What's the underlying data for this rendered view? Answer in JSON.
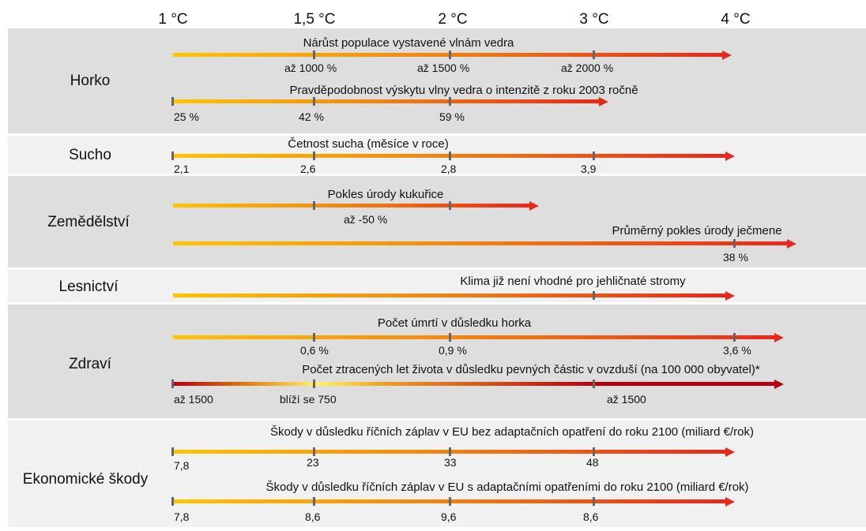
{
  "temperatures": [
    "1 °C",
    "1,5 °C",
    "2 °C",
    "3 °C",
    "4 °C"
  ],
  "categories": [
    {
      "name": "Horko",
      "indicators": [
        {
          "title": "Nárůst populace vystavené vlnám vedra",
          "values": [
            "až 1000 %",
            "až 1500 %",
            "až 2000 %"
          ]
        },
        {
          "title": "Pravděpodobnost výskytu vlny vedra o intenzitě z roku 2003 ročně",
          "values": [
            "25 %",
            "42 %",
            "59 %"
          ]
        }
      ]
    },
    {
      "name": "Sucho",
      "indicators": [
        {
          "title": "Četnost sucha (měsíce v roce)",
          "values": [
            "2,1",
            "2,6",
            "2,8",
            "3,9"
          ]
        }
      ]
    },
    {
      "name": "Zemědělství",
      "indicators": [
        {
          "title": "Pokles úrody kukuřice",
          "values": [
            "až -50 %"
          ]
        },
        {
          "title": "Průměrný pokles úrody ječmene",
          "values": [
            "38 %"
          ]
        }
      ]
    },
    {
      "name": "Lesnictví",
      "indicators": [
        {
          "title": "Klima již není vhodné pro jehličnaté stromy",
          "values": []
        }
      ]
    },
    {
      "name": "Zdraví",
      "indicators": [
        {
          "title": "Počet úmrtí v důsledku horka",
          "values": [
            "0,6 %",
            "0,9 %",
            "3,6 %"
          ]
        },
        {
          "title": "Počet ztracených let života v důsledku pevných částic v ovzduší (na 100 000 obyvatel)*",
          "values": [
            "až 1500",
            "blíží se 750",
            "až 1500"
          ]
        }
      ]
    },
    {
      "name": "Ekonomické škody",
      "indicators": [
        {
          "title": "Škody v důsledku říčních záplav v EU bez adaptačních opatření do roku 2100 (miliard €/rok)",
          "values": [
            "7,8",
            "23",
            "33",
            "48"
          ]
        },
        {
          "title": "Škody v důsledku říčních záplav v EU s adaptačními opatřeními do roku 2100 (miliard €/rok)",
          "values": [
            "7,8",
            "8,6",
            "9,6",
            "8,6"
          ]
        }
      ]
    }
  ],
  "colors": {
    "gradient_start": "#ffc400",
    "gradient_end": "#e8281a",
    "pm_dark": "#b5000f",
    "pm_light": "#fff36a",
    "band_dark": "#dedede",
    "band_light": "#f1f1f1"
  }
}
